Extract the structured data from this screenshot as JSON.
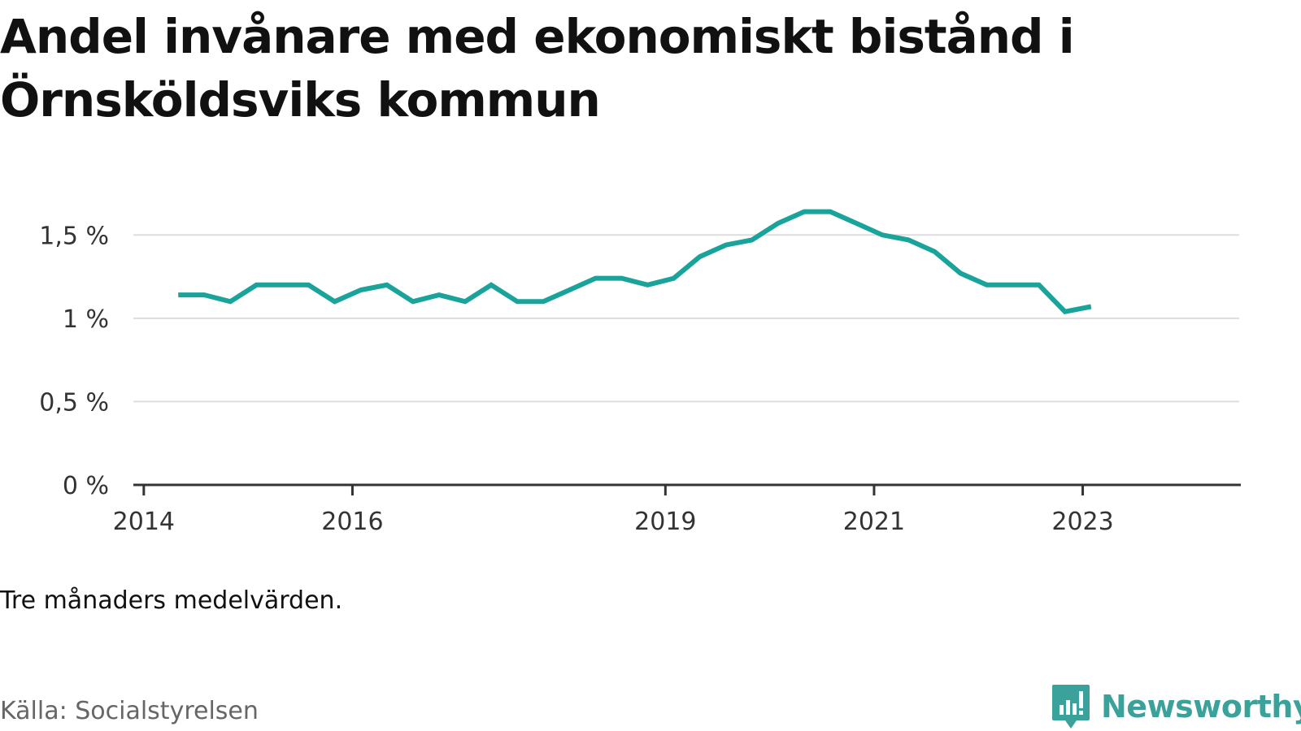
{
  "title": "Andel invånare med ekonomiskt bistånd i Örnsköldsviks kommun",
  "note": "Tre månaders medelvärden.",
  "source": "Källa: Socialstyrelsen",
  "brand": {
    "name": "Newsworthy",
    "icon": "newsworthy-logo-icon",
    "color": "#3aa29a"
  },
  "colors": {
    "line": "#1aa39b",
    "grid": "#dddddd",
    "axis": "#333333"
  },
  "chart_data": {
    "type": "line",
    "title": "Andel invånare med ekonomiskt bistånd i Örnsköldsviks kommun",
    "ylim": [
      0,
      1.75
    ],
    "yticks": [
      {
        "value": 0,
        "label": "0 %"
      },
      {
        "value": 0.5,
        "label": "0,5 %"
      },
      {
        "value": 1,
        "label": "1 %"
      },
      {
        "value": 1.5,
        "label": "1,5 %"
      }
    ],
    "xlim": [
      2013.9,
      2024.5
    ],
    "xticks": [
      {
        "value": 2014,
        "label": "2014"
      },
      {
        "value": 2016,
        "label": "2016"
      },
      {
        "value": 2019,
        "label": "2019"
      },
      {
        "value": 2021,
        "label": "2021"
      },
      {
        "value": 2023,
        "label": "2023"
      }
    ],
    "grid": true,
    "series": [
      {
        "x": [
          2014.33,
          2014.58,
          2014.83,
          2015.08,
          2015.33,
          2015.58,
          2015.83,
          2016.08,
          2016.33,
          2016.58,
          2016.83,
          2017.08,
          2017.33,
          2017.58,
          2017.83,
          2018.08,
          2018.33,
          2018.58,
          2018.83,
          2019.08,
          2019.33,
          2019.58,
          2019.83,
          2020.08,
          2020.33,
          2020.58,
          2020.83,
          2021.08,
          2021.33,
          2021.58,
          2021.83,
          2022.08,
          2022.33,
          2022.58,
          2022.83,
          2023.08
        ],
        "values": [
          1.14,
          1.14,
          1.1,
          1.2,
          1.2,
          1.2,
          1.1,
          1.17,
          1.2,
          1.1,
          1.14,
          1.1,
          1.2,
          1.1,
          1.1,
          1.17,
          1.24,
          1.24,
          1.2,
          1.24,
          1.37,
          1.44,
          1.47,
          1.57,
          1.64,
          1.64,
          1.57,
          1.5,
          1.47,
          1.4,
          1.27,
          1.2,
          1.2,
          1.2,
          1.04,
          1.07
        ]
      }
    ]
  }
}
